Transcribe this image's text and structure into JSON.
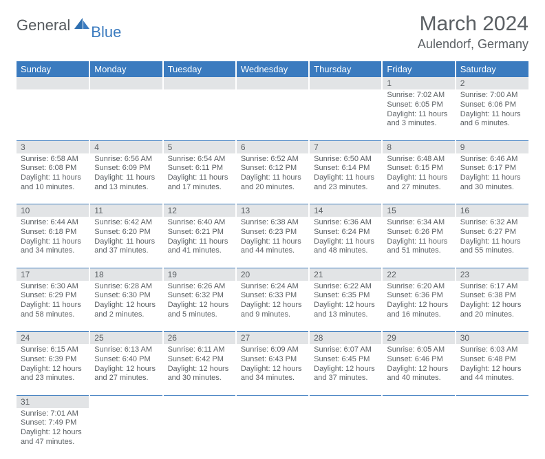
{
  "logo": {
    "text1": "General",
    "text2": "Blue"
  },
  "title": "March 2024",
  "location": "Aulendorf, Germany",
  "colors": {
    "header_bg": "#3b7bbf",
    "header_text": "#ffffff",
    "daynum_bg": "#e2e4e6",
    "body_text": "#5a5f63",
    "row_border": "#3b7bbf"
  },
  "day_headers": [
    "Sunday",
    "Monday",
    "Tuesday",
    "Wednesday",
    "Thursday",
    "Friday",
    "Saturday"
  ],
  "weeks": [
    [
      null,
      null,
      null,
      null,
      null,
      {
        "n": "1",
        "sr": "Sunrise: 7:02 AM",
        "ss": "Sunset: 6:05 PM",
        "d1": "Daylight: 11 hours",
        "d2": "and 3 minutes."
      },
      {
        "n": "2",
        "sr": "Sunrise: 7:00 AM",
        "ss": "Sunset: 6:06 PM",
        "d1": "Daylight: 11 hours",
        "d2": "and 6 minutes."
      }
    ],
    [
      {
        "n": "3",
        "sr": "Sunrise: 6:58 AM",
        "ss": "Sunset: 6:08 PM",
        "d1": "Daylight: 11 hours",
        "d2": "and 10 minutes."
      },
      {
        "n": "4",
        "sr": "Sunrise: 6:56 AM",
        "ss": "Sunset: 6:09 PM",
        "d1": "Daylight: 11 hours",
        "d2": "and 13 minutes."
      },
      {
        "n": "5",
        "sr": "Sunrise: 6:54 AM",
        "ss": "Sunset: 6:11 PM",
        "d1": "Daylight: 11 hours",
        "d2": "and 17 minutes."
      },
      {
        "n": "6",
        "sr": "Sunrise: 6:52 AM",
        "ss": "Sunset: 6:12 PM",
        "d1": "Daylight: 11 hours",
        "d2": "and 20 minutes."
      },
      {
        "n": "7",
        "sr": "Sunrise: 6:50 AM",
        "ss": "Sunset: 6:14 PM",
        "d1": "Daylight: 11 hours",
        "d2": "and 23 minutes."
      },
      {
        "n": "8",
        "sr": "Sunrise: 6:48 AM",
        "ss": "Sunset: 6:15 PM",
        "d1": "Daylight: 11 hours",
        "d2": "and 27 minutes."
      },
      {
        "n": "9",
        "sr": "Sunrise: 6:46 AM",
        "ss": "Sunset: 6:17 PM",
        "d1": "Daylight: 11 hours",
        "d2": "and 30 minutes."
      }
    ],
    [
      {
        "n": "10",
        "sr": "Sunrise: 6:44 AM",
        "ss": "Sunset: 6:18 PM",
        "d1": "Daylight: 11 hours",
        "d2": "and 34 minutes."
      },
      {
        "n": "11",
        "sr": "Sunrise: 6:42 AM",
        "ss": "Sunset: 6:20 PM",
        "d1": "Daylight: 11 hours",
        "d2": "and 37 minutes."
      },
      {
        "n": "12",
        "sr": "Sunrise: 6:40 AM",
        "ss": "Sunset: 6:21 PM",
        "d1": "Daylight: 11 hours",
        "d2": "and 41 minutes."
      },
      {
        "n": "13",
        "sr": "Sunrise: 6:38 AM",
        "ss": "Sunset: 6:23 PM",
        "d1": "Daylight: 11 hours",
        "d2": "and 44 minutes."
      },
      {
        "n": "14",
        "sr": "Sunrise: 6:36 AM",
        "ss": "Sunset: 6:24 PM",
        "d1": "Daylight: 11 hours",
        "d2": "and 48 minutes."
      },
      {
        "n": "15",
        "sr": "Sunrise: 6:34 AM",
        "ss": "Sunset: 6:26 PM",
        "d1": "Daylight: 11 hours",
        "d2": "and 51 minutes."
      },
      {
        "n": "16",
        "sr": "Sunrise: 6:32 AM",
        "ss": "Sunset: 6:27 PM",
        "d1": "Daylight: 11 hours",
        "d2": "and 55 minutes."
      }
    ],
    [
      {
        "n": "17",
        "sr": "Sunrise: 6:30 AM",
        "ss": "Sunset: 6:29 PM",
        "d1": "Daylight: 11 hours",
        "d2": "and 58 minutes."
      },
      {
        "n": "18",
        "sr": "Sunrise: 6:28 AM",
        "ss": "Sunset: 6:30 PM",
        "d1": "Daylight: 12 hours",
        "d2": "and 2 minutes."
      },
      {
        "n": "19",
        "sr": "Sunrise: 6:26 AM",
        "ss": "Sunset: 6:32 PM",
        "d1": "Daylight: 12 hours",
        "d2": "and 5 minutes."
      },
      {
        "n": "20",
        "sr": "Sunrise: 6:24 AM",
        "ss": "Sunset: 6:33 PM",
        "d1": "Daylight: 12 hours",
        "d2": "and 9 minutes."
      },
      {
        "n": "21",
        "sr": "Sunrise: 6:22 AM",
        "ss": "Sunset: 6:35 PM",
        "d1": "Daylight: 12 hours",
        "d2": "and 13 minutes."
      },
      {
        "n": "22",
        "sr": "Sunrise: 6:20 AM",
        "ss": "Sunset: 6:36 PM",
        "d1": "Daylight: 12 hours",
        "d2": "and 16 minutes."
      },
      {
        "n": "23",
        "sr": "Sunrise: 6:17 AM",
        "ss": "Sunset: 6:38 PM",
        "d1": "Daylight: 12 hours",
        "d2": "and 20 minutes."
      }
    ],
    [
      {
        "n": "24",
        "sr": "Sunrise: 6:15 AM",
        "ss": "Sunset: 6:39 PM",
        "d1": "Daylight: 12 hours",
        "d2": "and 23 minutes."
      },
      {
        "n": "25",
        "sr": "Sunrise: 6:13 AM",
        "ss": "Sunset: 6:40 PM",
        "d1": "Daylight: 12 hours",
        "d2": "and 27 minutes."
      },
      {
        "n": "26",
        "sr": "Sunrise: 6:11 AM",
        "ss": "Sunset: 6:42 PM",
        "d1": "Daylight: 12 hours",
        "d2": "and 30 minutes."
      },
      {
        "n": "27",
        "sr": "Sunrise: 6:09 AM",
        "ss": "Sunset: 6:43 PM",
        "d1": "Daylight: 12 hours",
        "d2": "and 34 minutes."
      },
      {
        "n": "28",
        "sr": "Sunrise: 6:07 AM",
        "ss": "Sunset: 6:45 PM",
        "d1": "Daylight: 12 hours",
        "d2": "and 37 minutes."
      },
      {
        "n": "29",
        "sr": "Sunrise: 6:05 AM",
        "ss": "Sunset: 6:46 PM",
        "d1": "Daylight: 12 hours",
        "d2": "and 40 minutes."
      },
      {
        "n": "30",
        "sr": "Sunrise: 6:03 AM",
        "ss": "Sunset: 6:48 PM",
        "d1": "Daylight: 12 hours",
        "d2": "and 44 minutes."
      }
    ],
    [
      {
        "n": "31",
        "sr": "Sunrise: 7:01 AM",
        "ss": "Sunset: 7:49 PM",
        "d1": "Daylight: 12 hours",
        "d2": "and 47 minutes."
      },
      null,
      null,
      null,
      null,
      null,
      null
    ]
  ]
}
